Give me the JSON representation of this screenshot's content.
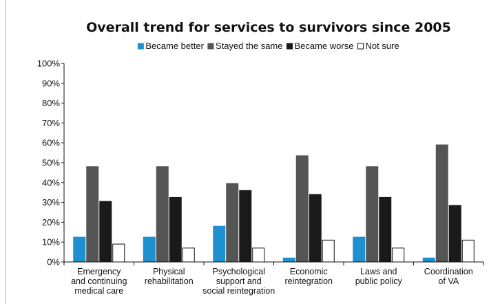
{
  "chart_data": {
    "type": "bar",
    "title": "Overall trend for services to survivors since 2005",
    "xlabel": "",
    "ylabel": "",
    "ylim": [
      0,
      100
    ],
    "yticks": [
      "0%",
      "10%",
      "20%",
      "30%",
      "40%",
      "50%",
      "60%",
      "70%",
      "80%",
      "90%",
      "100%"
    ],
    "grid": false,
    "legend_position": "top",
    "categories": [
      "Emergency and continuing medical care",
      "Physical rehabilitation",
      "Psychological support and social reintegration",
      "Economic reintegration",
      "Laws and public policy",
      "Coordination of VA"
    ],
    "category_lines": [
      [
        "Emergency",
        "and continuing",
        "medical care"
      ],
      [
        "Physical",
        "rehabilitation"
      ],
      [
        "Psychological",
        "support and",
        "social reintegration"
      ],
      [
        "Economic",
        "reintegration"
      ],
      [
        "Laws and",
        "public policy"
      ],
      [
        "Coordination",
        "of VA"
      ]
    ],
    "series": [
      {
        "name": "Became better",
        "color": "#1e90cf",
        "values": [
          12.5,
          12.5,
          18,
          2,
          12.5,
          2
        ]
      },
      {
        "name": "Stayed the same",
        "color": "#555555",
        "values": [
          48,
          48,
          39.5,
          53.5,
          48,
          59
        ]
      },
      {
        "name": "Became worse",
        "color": "#1a1a1a",
        "values": [
          30.5,
          32.5,
          36,
          34,
          32.5,
          28.5
        ]
      },
      {
        "name": "Not sure",
        "color": "#ffffff",
        "values": [
          9,
          7,
          7,
          11,
          7,
          11
        ]
      }
    ]
  }
}
